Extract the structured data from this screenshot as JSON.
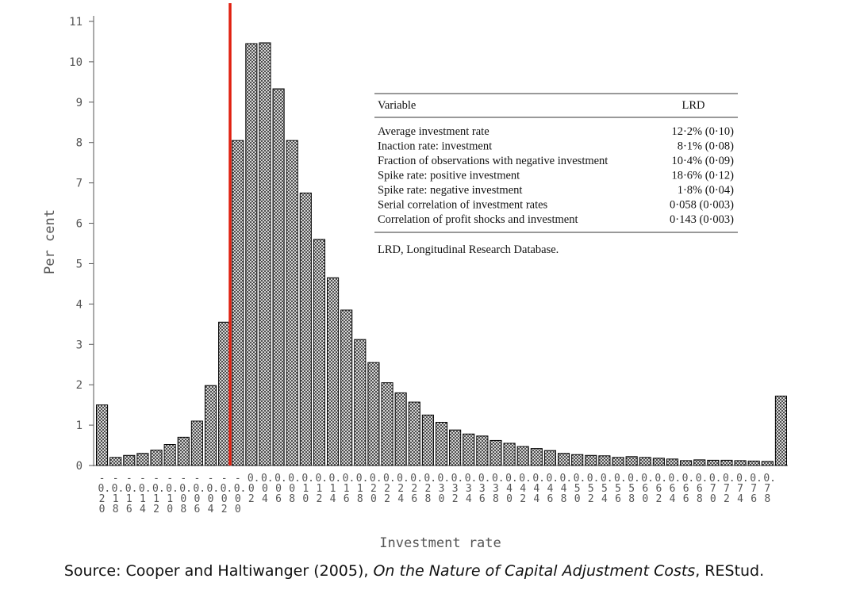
{
  "chart_data": {
    "type": "bar",
    "ylabel": "Per cent",
    "xlabel": "Investment rate",
    "color": "#000000",
    "reference_line_color": "#e02010",
    "ylim": [
      0,
      11
    ],
    "yticks": [
      0,
      1,
      2,
      3,
      4,
      5,
      6,
      7,
      8,
      9,
      10,
      11
    ],
    "categories": [
      "-0.20",
      "-0.18",
      "-0.16",
      "-0.14",
      "-0.12",
      "-0.10",
      "-0.08",
      "-0.06",
      "-0.04",
      "-0.02",
      "-0.00",
      "0.02",
      "0.04",
      "0.06",
      "0.08",
      "0.10",
      "0.12",
      "0.14",
      "0.16",
      "0.18",
      "0.20",
      "0.22",
      "0.24",
      "0.26",
      "0.28",
      "0.30",
      "0.32",
      "0.34",
      "0.36",
      "0.38",
      "0.40",
      "0.42",
      "0.44",
      "0.46",
      "0.48",
      "0.50",
      "0.52",
      "0.54",
      "0.56",
      "0.58",
      "0.60",
      "0.62",
      "0.64",
      "0.66",
      "0.68",
      "0.70",
      "0.72",
      "0.74",
      "0.76",
      "0.78",
      null
    ],
    "values": [
      1.5,
      0.2,
      0.25,
      0.3,
      0.38,
      0.52,
      0.7,
      1.1,
      1.98,
      3.55,
      8.05,
      10.45,
      10.47,
      9.33,
      8.05,
      6.75,
      5.6,
      4.65,
      3.85,
      3.12,
      2.55,
      2.05,
      1.8,
      1.57,
      1.25,
      1.07,
      0.88,
      0.78,
      0.73,
      0.62,
      0.55,
      0.47,
      0.42,
      0.37,
      0.3,
      0.27,
      0.25,
      0.24,
      0.2,
      0.22,
      0.2,
      0.18,
      0.16,
      0.12,
      0.14,
      0.13,
      0.13,
      0.12,
      0.11,
      0.1,
      1.72
    ],
    "table": {
      "header": [
        "Variable",
        "LRD"
      ],
      "rows": [
        [
          "Average investment rate",
          "12·2% (0·10)"
        ],
        [
          "Inaction rate: investment",
          "8·1% (0·08)"
        ],
        [
          "Fraction of observations with negative investment",
          "10·4% (0·09)"
        ],
        [
          "Spike rate: positive investment",
          "18·6% (0·12)"
        ],
        [
          "Spike rate: negative investment",
          "1·8% (0·04)"
        ],
        [
          "Serial correlation of investment rates",
          "0·058 (0·003)"
        ],
        [
          "Correlation of profit shocks and investment",
          "0·143 (0·003)"
        ]
      ],
      "note": "LRD, Longitudinal Research Database."
    },
    "source": [
      "Source: Cooper and Haltiwanger (2005), ",
      "On the Nature of Capital Adjustment Costs",
      ", REStud."
    ]
  }
}
